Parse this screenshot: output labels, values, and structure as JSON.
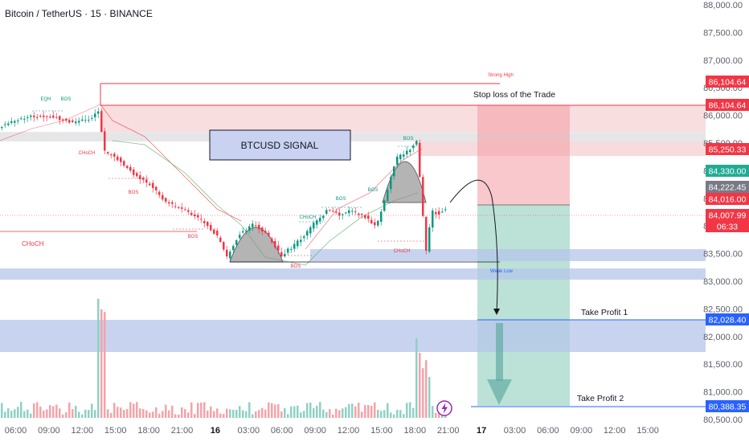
{
  "header": {
    "title": "Bitcoin / TetherUS · 15 · BINANCE"
  },
  "signal_box": {
    "label": "BTCUSD SIGNAL"
  },
  "annotations": {
    "stop_loss": "Stop loss of the Trade",
    "take_profit_1": "Take Profit 1",
    "take_profit_2": "Take Profit 2",
    "strong_high": "Strong High",
    "weak_low": "Weak Low",
    "choch_big": "CHoCH",
    "eqh": "EQH"
  },
  "chart_data": {
    "type": "candlestick",
    "title": "Bitcoin / TetherUS · 15 · BINANCE",
    "y_axis": {
      "ticks": [
        "88,000.00",
        "87,500.00",
        "87,000.00",
        "86,500.00",
        "86,000.00",
        "85,500.00",
        "85,000.00",
        "84,500.00",
        "84,000.00",
        "83,500.00",
        "83,000.00",
        "82,500.00",
        "82,000.00",
        "81,500.00",
        "81,000.00",
        "80,500.00"
      ],
      "range": [
        80300,
        88000
      ]
    },
    "x_axis": {
      "ticks": [
        "06:00",
        "09:00",
        "12:00",
        "15:00",
        "18:00",
        "21:00",
        "16",
        "03:00",
        "06:00",
        "09:00",
        "12:00",
        "15:00",
        "18:00",
        "21:00",
        "17",
        "03:00",
        "06:00",
        "09:00",
        "12:00",
        "15:00"
      ],
      "bold_ticks": [
        "16",
        "17"
      ]
    },
    "price_tags": [
      {
        "label": "86,104.64",
        "color": "#f23645"
      },
      {
        "label": "86,104.64",
        "color": "#f23645"
      },
      {
        "label": "85,250.33",
        "color": "#f23645"
      },
      {
        "label": "84,330.00",
        "color": "#22ab94"
      },
      {
        "label": "84,222.45",
        "color": "#787b86"
      },
      {
        "label": "84,016.00",
        "color": "#f23645"
      },
      {
        "label": "84,007.99",
        "color": "#f23645"
      },
      {
        "label": "06:33",
        "color": "#f23645"
      },
      {
        "label": "82,028.40",
        "color": "#2962ff"
      },
      {
        "label": "80,388.35",
        "color": "#2962ff"
      }
    ],
    "levels": {
      "strong_high": 86450,
      "stop_loss": 86104.64,
      "entry": 84016,
      "take_profit_1": 82028.4,
      "take_profit_2": 80388.35
    },
    "structure_labels": [
      "EQH",
      "BOS",
      "CHoCH",
      "BOS",
      "BOS",
      "BOS",
      "CHoCH",
      "BOS",
      "BOS",
      "CHoCH",
      "BOS",
      "CHoCH"
    ],
    "legend": "none",
    "grid": false
  }
}
